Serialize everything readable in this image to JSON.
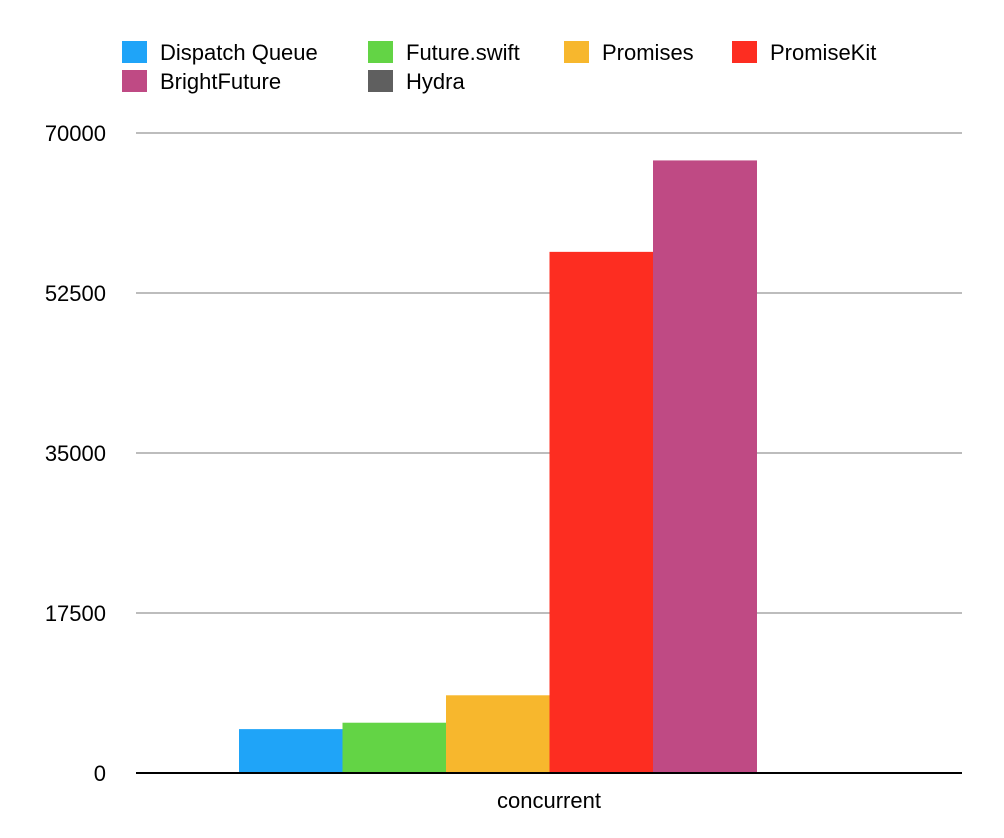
{
  "chart_data": {
    "type": "bar",
    "title": "",
    "xlabel": "",
    "ylabel": "",
    "categories": [
      "concurrent"
    ],
    "ylim": [
      0,
      70000
    ],
    "yticks": [
      0,
      17500,
      35000,
      52500,
      70000
    ],
    "yticks_labels": [
      "0",
      "17500",
      "35000",
      "52500",
      "70000"
    ],
    "grid": true,
    "legend_position": "top",
    "series": [
      {
        "name": "Dispatch Queue",
        "color": "#1fa4f8",
        "values": [
          4800
        ]
      },
      {
        "name": "Future.swift",
        "color": "#63d445",
        "values": [
          5500
        ]
      },
      {
        "name": "Promises",
        "color": "#f7b72d",
        "values": [
          8500
        ]
      },
      {
        "name": "PromiseKit",
        "color": "#fd2d21",
        "values": [
          57000
        ]
      },
      {
        "name": "BrightFuture",
        "color": "#bf4a84",
        "values": [
          67000
        ]
      },
      {
        "name": "Hydra",
        "color": "#5f5f5f",
        "values": [
          0
        ]
      }
    ]
  }
}
